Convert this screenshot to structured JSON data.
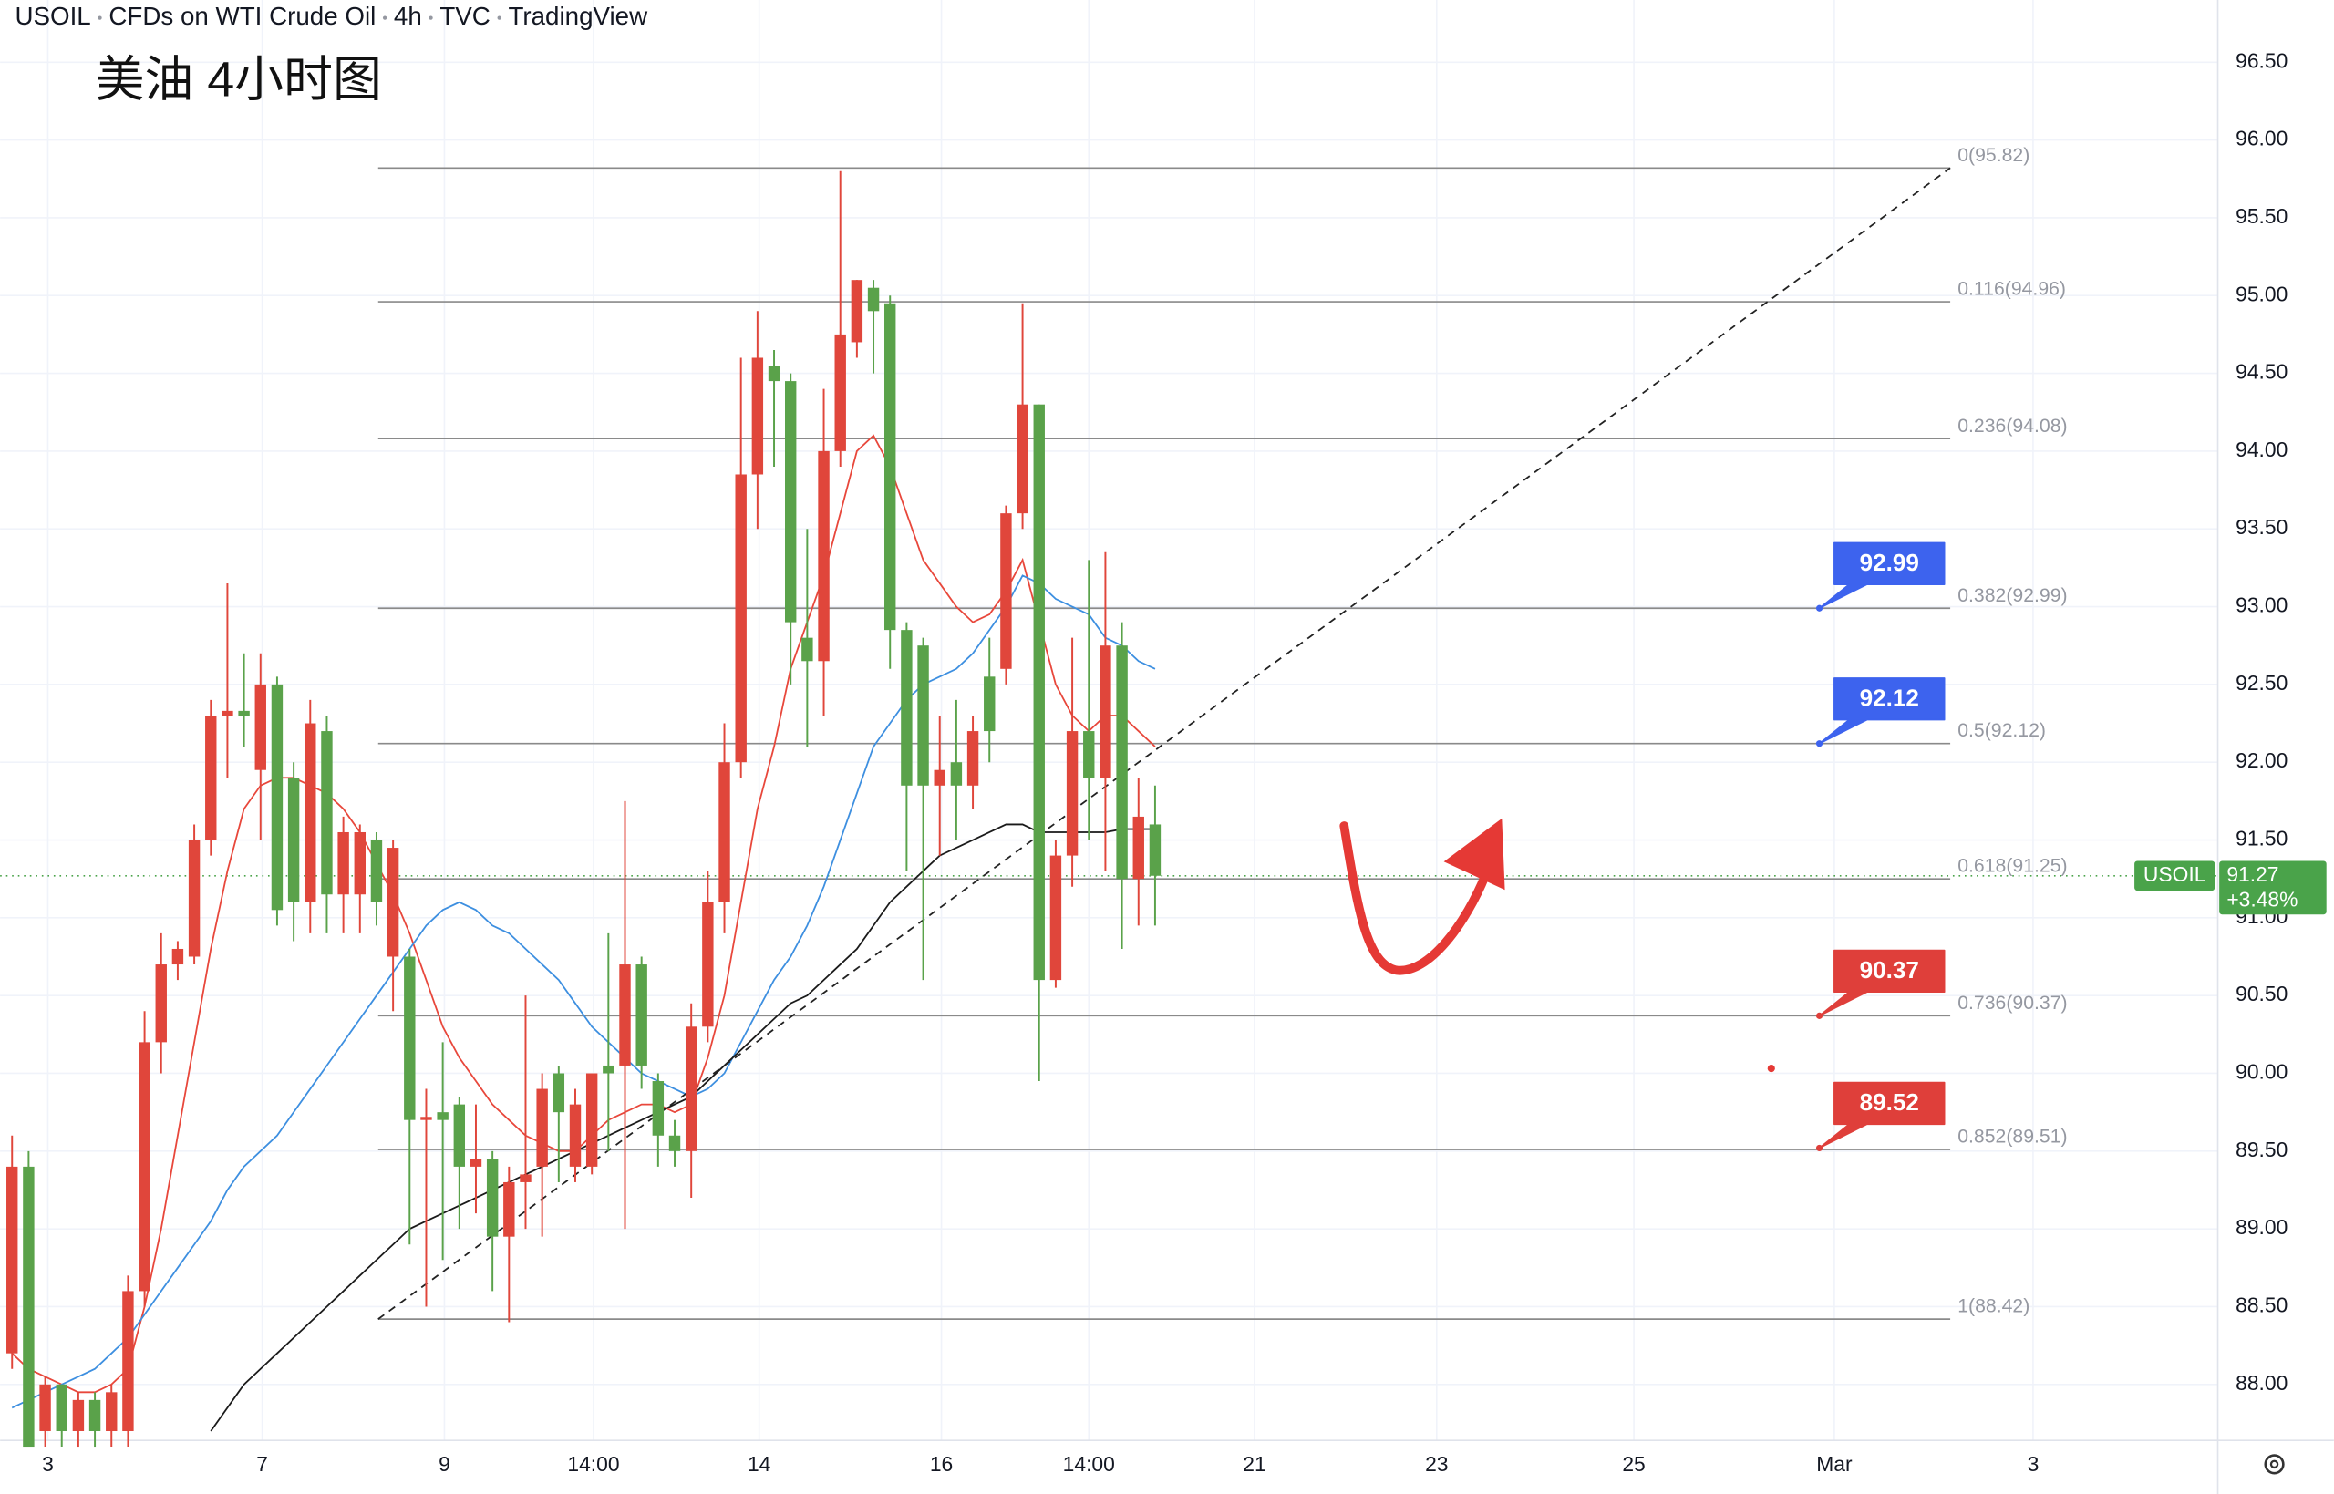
{
  "chart_data": {
    "type": "candlestick",
    "header": [
      "USOIL",
      "CFDs on WTI Crude Oil",
      "4h",
      "TVC",
      "TradingView"
    ],
    "title": "美油 4小时图",
    "up_color": "#e0463b",
    "down_color": "#5aa24a",
    "grid": true,
    "xlim": [
      -0.72,
      133.15
    ],
    "xticks": [
      {
        "value": 2.16,
        "label": "3"
      },
      {
        "value": 15.1,
        "label": "7"
      },
      {
        "value": 26.1,
        "label": "9"
      },
      {
        "value": 35.1,
        "label": "14:00"
      },
      {
        "value": 45.1,
        "label": "14"
      },
      {
        "value": 56.1,
        "label": "16"
      },
      {
        "value": 65.0,
        "label": "14:00"
      },
      {
        "value": 75.0,
        "label": "21"
      },
      {
        "value": 86.0,
        "label": "23"
      },
      {
        "value": 97.9,
        "label": "25"
      },
      {
        "value": 110.0,
        "label": "Mar"
      },
      {
        "value": 122.0,
        "label": "3"
      }
    ],
    "ylim": [
      87.64,
      96.9
    ],
    "yticks": [
      {
        "value": 88,
        "label": "88.00"
      },
      {
        "value": 88.5,
        "label": "88.50"
      },
      {
        "value": 89,
        "label": "89.00"
      },
      {
        "value": 89.5,
        "label": "89.50"
      },
      {
        "value": 90,
        "label": "90.00"
      },
      {
        "value": 90.5,
        "label": "90.50"
      },
      {
        "value": 91,
        "label": "91.00"
      },
      {
        "value": 91.5,
        "label": "91.50"
      },
      {
        "value": 92,
        "label": "92.00"
      },
      {
        "value": 92.5,
        "label": "92.50"
      },
      {
        "value": 93,
        "label": "93.00"
      },
      {
        "value": 93.5,
        "label": "93.50"
      },
      {
        "value": 94,
        "label": "94.00"
      },
      {
        "value": 94.5,
        "label": "94.50"
      },
      {
        "value": 95,
        "label": "95.00"
      },
      {
        "value": 95.5,
        "label": "95.50"
      },
      {
        "value": 96,
        "label": "96.00"
      },
      {
        "value": 96.5,
        "label": "96.50"
      }
    ],
    "x": [
      0,
      1,
      2,
      3,
      4,
      5,
      6,
      7,
      8,
      9,
      10,
      11,
      12,
      13,
      14,
      15,
      16,
      17,
      18,
      19,
      20,
      21,
      22,
      23,
      24,
      25,
      26,
      27,
      28,
      29,
      30,
      31,
      32,
      33,
      34,
      35,
      36,
      37,
      38,
      39,
      40,
      41,
      42,
      43,
      44,
      45,
      46,
      47,
      48,
      49,
      50,
      51,
      52,
      53,
      54,
      55,
      56,
      57,
      58,
      59,
      60,
      61,
      62,
      63,
      64,
      65,
      66,
      67,
      68,
      69
    ],
    "open": [
      88.2,
      89.4,
      87.7,
      88.0,
      87.7,
      87.9,
      87.7,
      87.7,
      88.6,
      90.2,
      90.7,
      90.75,
      91.5,
      92.3,
      92.33,
      91.95,
      92.5,
      91.9,
      91.1,
      92.2,
      91.15,
      91.15,
      91.5,
      90.75,
      90.75,
      89.7,
      89.75,
      89.8,
      89.4,
      89.45,
      88.95,
      89.3,
      89.4,
      90.0,
      89.4,
      89.4,
      90.05,
      90.05,
      90.7,
      89.95,
      89.6,
      89.5,
      90.3,
      91.1,
      92.0,
      93.85,
      94.55,
      94.45,
      92.8,
      92.65,
      94.0,
      94.7,
      95.05,
      94.95,
      92.85,
      92.75,
      91.85,
      92.0,
      91.85,
      92.55,
      92.6,
      93.6,
      94.3,
      90.6,
      91.4,
      92.2,
      91.9,
      92.75,
      91.25,
      91.6
    ],
    "high": [
      89.6,
      89.5,
      88.05,
      88.0,
      87.95,
      87.95,
      88.0,
      88.7,
      90.4,
      90.9,
      90.85,
      91.6,
      92.4,
      93.15,
      92.7,
      92.7,
      92.55,
      92.0,
      92.4,
      92.3,
      91.65,
      91.6,
      91.55,
      91.5,
      90.8,
      89.9,
      90.2,
      89.85,
      89.8,
      89.5,
      89.4,
      90.5,
      90.0,
      90.05,
      89.9,
      90.0,
      90.9,
      91.75,
      90.75,
      90.0,
      89.7,
      90.45,
      91.3,
      92.25,
      94.6,
      94.9,
      94.65,
      94.5,
      93.5,
      94.4,
      95.8,
      95.1,
      95.1,
      95.0,
      92.9,
      92.8,
      92.3,
      92.4,
      92.3,
      92.8,
      93.65,
      94.95,
      94.3,
      91.5,
      92.8,
      93.3,
      93.35,
      92.9,
      91.9,
      91.85
    ],
    "low": [
      88.1,
      87.6,
      87.6,
      87.6,
      87.6,
      87.6,
      87.6,
      87.6,
      88.5,
      90.0,
      90.6,
      90.7,
      91.4,
      91.9,
      92.1,
      91.5,
      90.95,
      90.85,
      90.9,
      90.9,
      90.9,
      90.9,
      90.95,
      90.4,
      88.9,
      88.5,
      88.8,
      89.0,
      89.1,
      88.6,
      88.4,
      89.0,
      88.95,
      89.3,
      89.3,
      89.35,
      89.5,
      89.0,
      89.9,
      89.4,
      89.4,
      89.2,
      90.2,
      90.9,
      91.9,
      93.5,
      93.9,
      92.5,
      92.1,
      92.3,
      93.9,
      94.6,
      94.5,
      92.6,
      91.3,
      90.6,
      91.4,
      91.5,
      91.7,
      92.0,
      92.5,
      93.5,
      89.95,
      90.55,
      91.2,
      91.5,
      91.3,
      90.8,
      90.95,
      90.95
    ],
    "close": [
      89.4,
      87.6,
      88.0,
      87.7,
      87.9,
      87.7,
      87.95,
      88.6,
      90.2,
      90.7,
      90.8,
      91.5,
      92.3,
      92.33,
      92.3,
      92.5,
      91.05,
      91.1,
      92.25,
      91.15,
      91.55,
      91.55,
      91.1,
      91.45,
      89.7,
      89.72,
      89.7,
      89.4,
      89.45,
      88.95,
      89.3,
      89.35,
      89.9,
      89.75,
      89.8,
      90.0,
      90.0,
      90.7,
      90.05,
      89.6,
      89.5,
      90.3,
      91.1,
      92.0,
      93.85,
      94.6,
      94.45,
      92.9,
      92.65,
      94.0,
      94.75,
      95.1,
      94.9,
      92.85,
      91.85,
      91.85,
      91.95,
      91.85,
      92.2,
      92.2,
      93.6,
      94.3,
      90.6,
      91.4,
      92.2,
      91.9,
      92.75,
      91.25,
      91.65,
      91.27
    ],
    "moving_averages": [
      {
        "color": "#e8473b",
        "values": [
          88.2,
          88.1,
          88.05,
          88.0,
          87.95,
          87.95,
          88.0,
          88.1,
          88.5,
          89.0,
          89.6,
          90.2,
          90.8,
          91.3,
          91.7,
          91.85,
          91.9,
          91.9,
          91.85,
          91.8,
          91.7,
          91.55,
          91.35,
          91.15,
          90.9,
          90.6,
          90.3,
          90.1,
          89.95,
          89.8,
          89.7,
          89.6,
          89.55,
          89.5,
          89.5,
          89.6,
          89.7,
          89.75,
          89.8,
          89.8,
          89.75,
          89.8,
          90.1,
          90.5,
          91.1,
          91.7,
          92.1,
          92.6,
          92.9,
          93.2,
          93.6,
          94.0,
          94.1,
          93.9,
          93.6,
          93.3,
          93.15,
          93.0,
          92.9,
          92.95,
          93.1,
          93.3,
          92.9,
          92.5,
          92.3,
          92.2,
          92.3,
          92.3,
          92.2,
          92.1
        ]
      },
      {
        "color": "#3d8fe0",
        "values": [
          87.85,
          87.9,
          87.95,
          88.0,
          88.05,
          88.1,
          88.2,
          88.3,
          88.45,
          88.6,
          88.75,
          88.9,
          89.05,
          89.25,
          89.4,
          89.5,
          89.6,
          89.75,
          89.9,
          90.05,
          90.2,
          90.35,
          90.5,
          90.65,
          90.8,
          90.95,
          91.05,
          91.1,
          91.05,
          90.95,
          90.9,
          90.8,
          90.7,
          90.6,
          90.45,
          90.3,
          90.2,
          90.1,
          90.0,
          89.95,
          89.9,
          89.85,
          89.9,
          90.0,
          90.2,
          90.4,
          90.6,
          90.75,
          90.95,
          91.2,
          91.5,
          91.8,
          92.1,
          92.25,
          92.4,
          92.5,
          92.55,
          92.6,
          92.7,
          92.85,
          93.0,
          93.2,
          93.15,
          93.05,
          93.0,
          92.95,
          92.8,
          92.75,
          92.65,
          92.6
        ]
      },
      {
        "color": "#1a1a1a",
        "values": [
          null,
          null,
          null,
          null,
          null,
          null,
          null,
          null,
          null,
          null,
          null,
          null,
          87.7,
          87.85,
          88.0,
          88.1,
          88.2,
          88.3,
          88.4,
          88.5,
          88.6,
          88.7,
          88.8,
          88.9,
          89.0,
          89.05,
          89.1,
          89.15,
          89.2,
          89.25,
          89.3,
          89.35,
          89.4,
          89.45,
          89.5,
          89.55,
          89.6,
          89.65,
          89.7,
          89.75,
          89.8,
          89.85,
          89.95,
          90.05,
          90.15,
          90.25,
          90.35,
          90.45,
          90.5,
          90.6,
          90.7,
          90.8,
          90.95,
          91.1,
          91.2,
          91.3,
          91.4,
          91.45,
          91.5,
          91.55,
          91.6,
          91.6,
          91.55,
          91.55,
          91.55,
          91.55,
          91.55,
          91.57,
          91.57,
          91.57
        ]
      }
    ],
    "fib": {
      "x": [
        22.1,
        117
      ],
      "levels": [
        {
          "value": 95.82,
          "label": "0(95.82)"
        },
        {
          "value": 94.96,
          "label": "0.116(94.96)"
        },
        {
          "value": 94.08,
          "label": "0.236(94.08)"
        },
        {
          "value": 92.99,
          "label": "0.382(92.99)"
        },
        {
          "value": 92.12,
          "label": "0.5(92.12)"
        },
        {
          "value": 91.25,
          "label": "0.618(91.25)"
        },
        {
          "value": 90.37,
          "label": "0.736(90.37)"
        },
        {
          "value": 89.51,
          "label": "0.852(89.51)"
        },
        {
          "value": 88.42,
          "label": "1(88.42)"
        }
      ]
    },
    "trend_line": {
      "x": [
        22.1,
        117
      ],
      "y": [
        88.42,
        95.82
      ]
    },
    "callouts": {
      "x": 109.1,
      "blue": [
        92.99,
        92.12
      ],
      "red": [
        90.37,
        89.52
      ],
      "blue_color": "#3d63ee",
      "red_color": "#df3f3a"
    },
    "last_price": {
      "symbol": "USOIL",
      "value": 91.27,
      "change": "+3.48%",
      "color": "#4aa34a"
    }
  }
}
